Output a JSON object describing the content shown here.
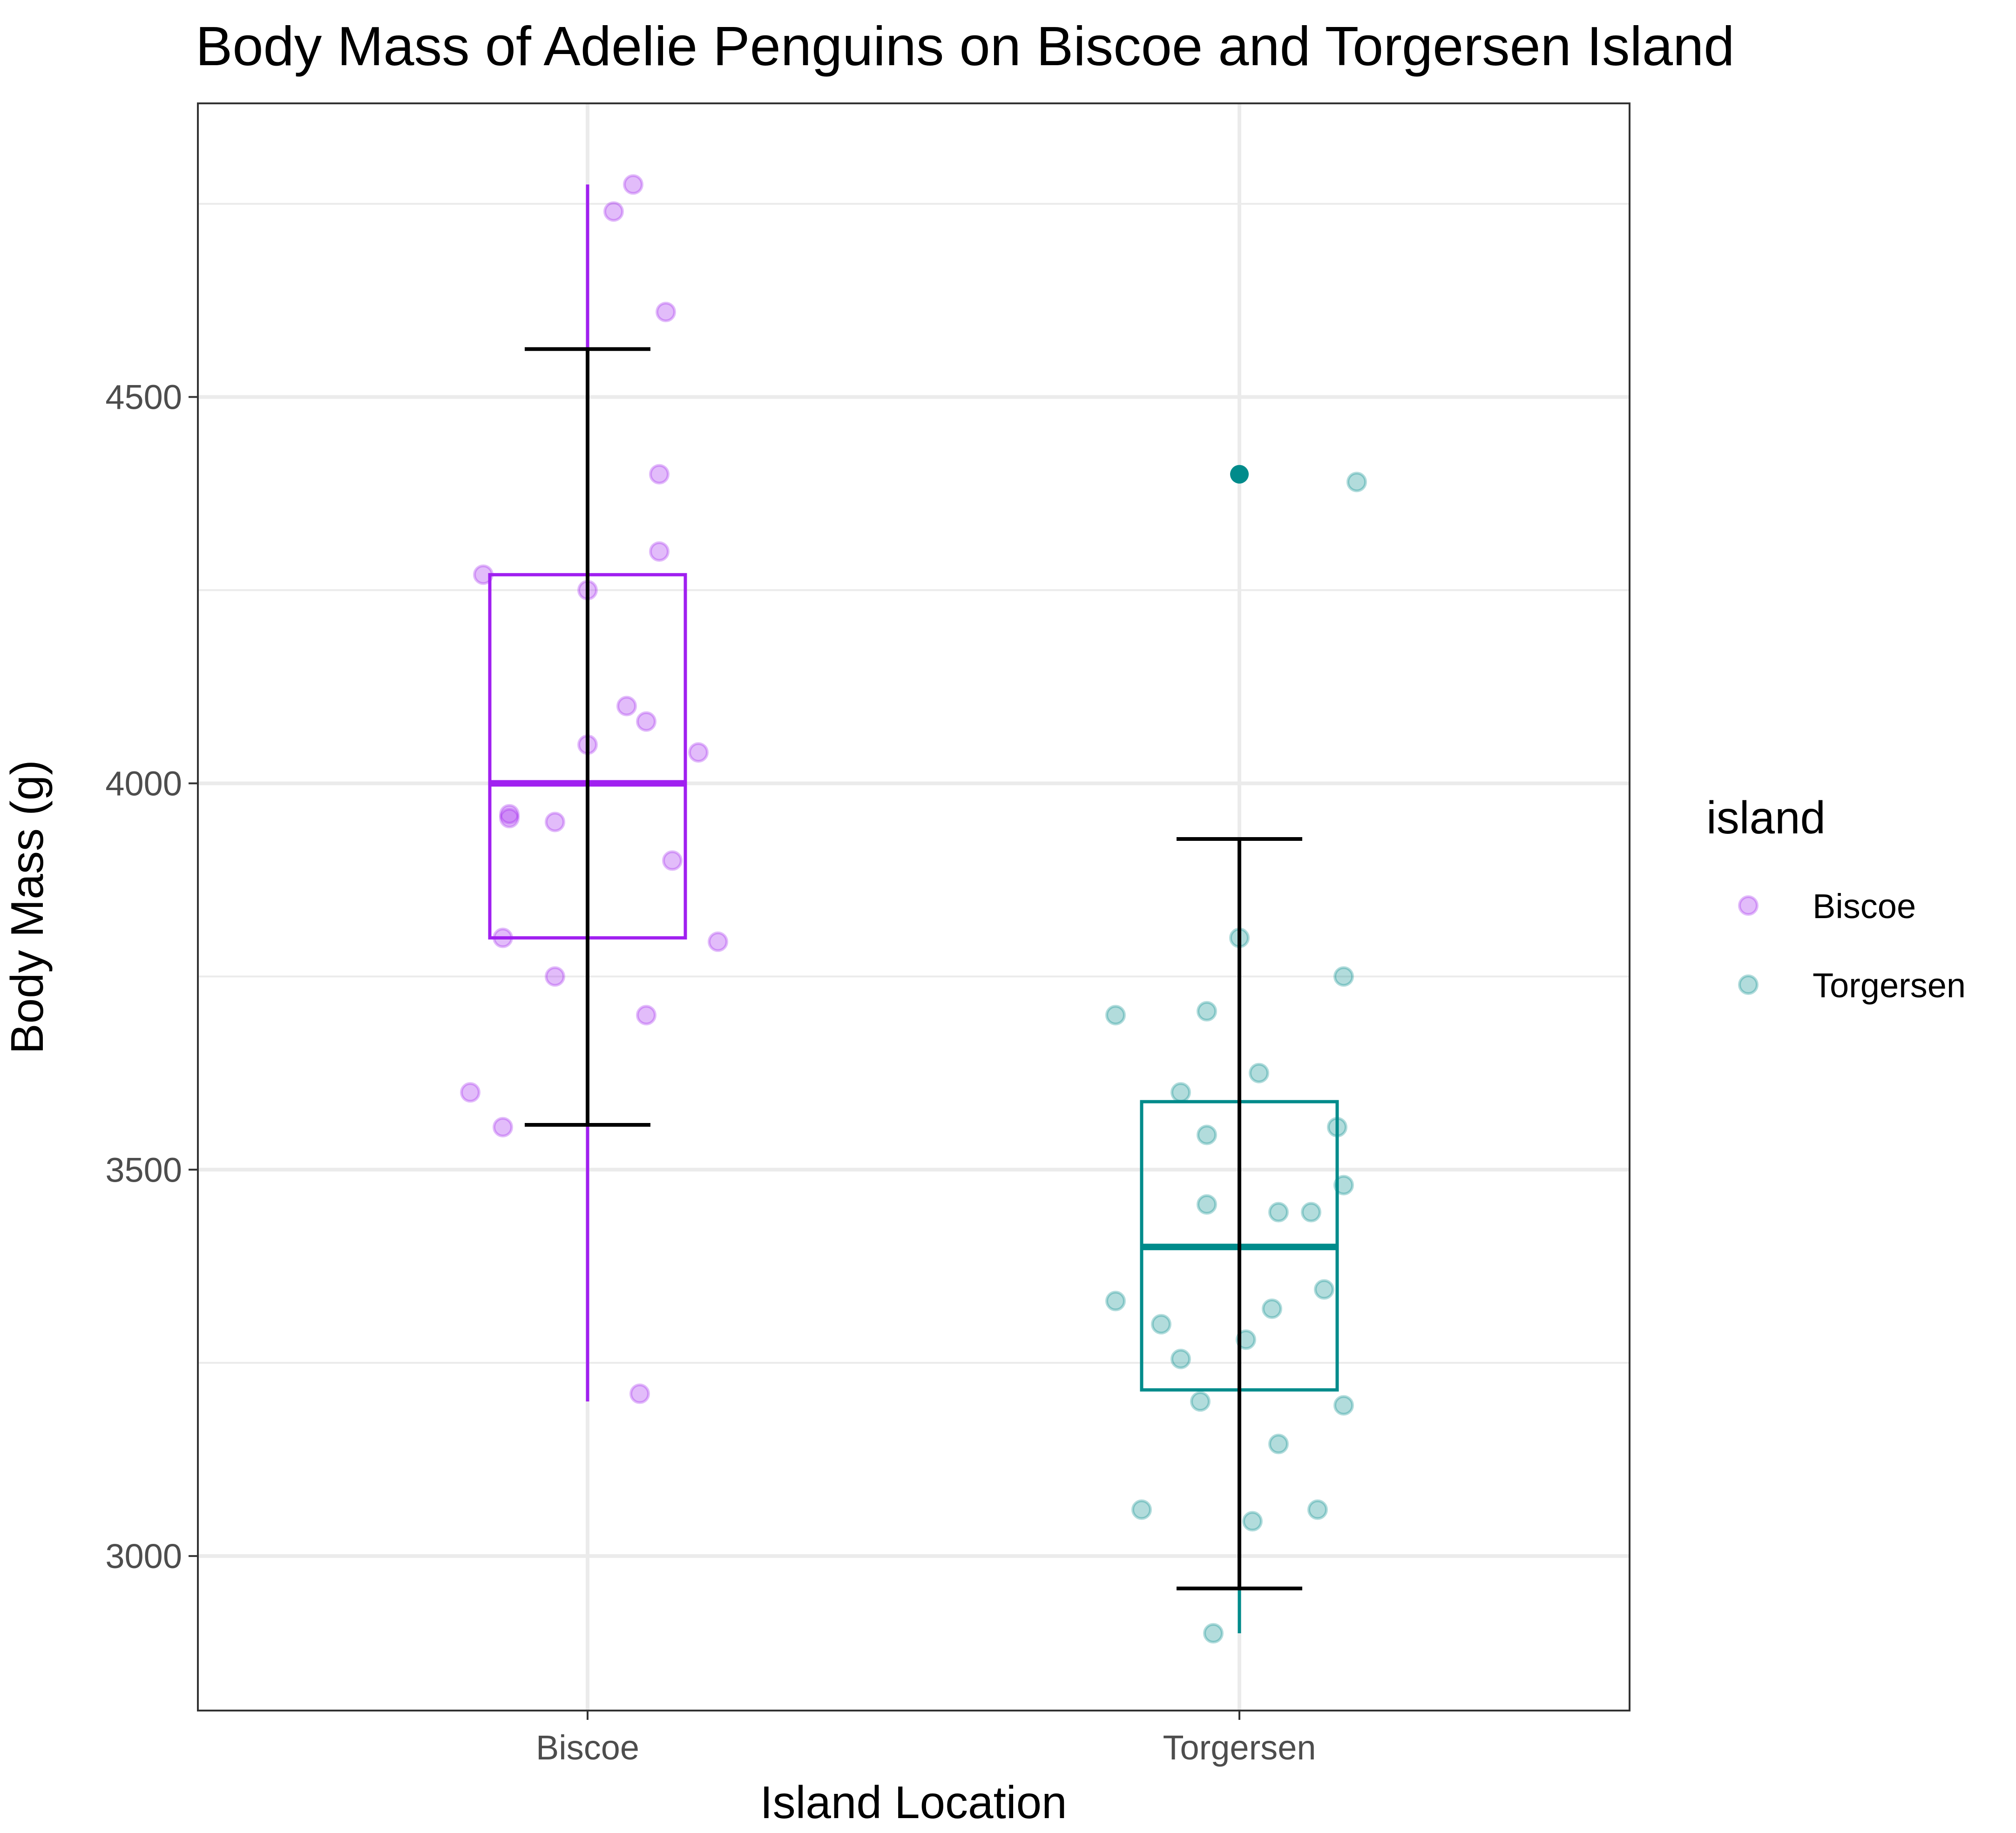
{
  "chart_data": {
    "type": "box",
    "title": "Body Mass of Adelie Penguins on Biscoe and Torgersen Island",
    "xlabel": "Island Location",
    "ylabel": "Body Mass (g)",
    "categories": [
      "Biscoe",
      "Torgersen"
    ],
    "ylim": [
      2800,
      4880
    ],
    "yticks": [
      3000,
      3500,
      4000,
      4500
    ],
    "y_tick_labels": [
      "3000",
      "3500",
      "4000",
      "4500"
    ],
    "grid": true,
    "legend": {
      "title": "island",
      "position": "right",
      "entries": [
        "Biscoe",
        "Torgersen"
      ]
    },
    "colors": {
      "Biscoe": "#a020f0",
      "Torgersen": "#008b8b",
      "errorbar": "#000000"
    },
    "boxes": [
      {
        "category": "Biscoe",
        "min": 3200,
        "q1": 3800,
        "median": 4000,
        "q3": 4270,
        "max": 4775,
        "outliers": []
      },
      {
        "category": "Torgersen",
        "min": 2900,
        "q1": 3215,
        "median": 3400,
        "q3": 3588,
        "max": 3800,
        "outliers": [
          4400
        ]
      }
    ],
    "error_bars": [
      {
        "category": "Biscoe",
        "low": 3558,
        "high": 4562
      },
      {
        "category": "Torgersen",
        "low": 2958,
        "high": 3928
      }
    ],
    "series": [
      {
        "name": "Biscoe",
        "points": [
          {
            "jitter": 0.07,
            "y": 4775
          },
          {
            "jitter": 0.04,
            "y": 4740
          },
          {
            "jitter": 0.12,
            "y": 4610
          },
          {
            "jitter": 0.11,
            "y": 4400
          },
          {
            "jitter": 0.11,
            "y": 4300
          },
          {
            "jitter": -0.16,
            "y": 4270
          },
          {
            "jitter": 0.0,
            "y": 4250
          },
          {
            "jitter": 0.06,
            "y": 4100
          },
          {
            "jitter": 0.09,
            "y": 4080
          },
          {
            "jitter": 0.0,
            "y": 4050
          },
          {
            "jitter": 0.17,
            "y": 4040
          },
          {
            "jitter": -0.12,
            "y": 3960
          },
          {
            "jitter": -0.12,
            "y": 3955
          },
          {
            "jitter": -0.05,
            "y": 3950
          },
          {
            "jitter": 0.13,
            "y": 3900
          },
          {
            "jitter": -0.13,
            "y": 3800
          },
          {
            "jitter": 0.2,
            "y": 3795
          },
          {
            "jitter": -0.05,
            "y": 3750
          },
          {
            "jitter": 0.09,
            "y": 3700
          },
          {
            "jitter": -0.18,
            "y": 3600
          },
          {
            "jitter": -0.13,
            "y": 3555
          },
          {
            "jitter": 0.08,
            "y": 3210
          }
        ]
      },
      {
        "name": "Torgersen",
        "points": [
          {
            "jitter": 0.18,
            "y": 4390
          },
          {
            "jitter": 0.0,
            "y": 3800
          },
          {
            "jitter": 0.16,
            "y": 3750
          },
          {
            "jitter": -0.05,
            "y": 3705
          },
          {
            "jitter": -0.19,
            "y": 3700
          },
          {
            "jitter": 0.03,
            "y": 3625
          },
          {
            "jitter": -0.09,
            "y": 3600
          },
          {
            "jitter": 0.15,
            "y": 3555
          },
          {
            "jitter": -0.05,
            "y": 3545
          },
          {
            "jitter": 0.16,
            "y": 3480
          },
          {
            "jitter": -0.05,
            "y": 3455
          },
          {
            "jitter": 0.06,
            "y": 3445
          },
          {
            "jitter": 0.11,
            "y": 3445
          },
          {
            "jitter": 0.13,
            "y": 3345
          },
          {
            "jitter": -0.19,
            "y": 3330
          },
          {
            "jitter": 0.05,
            "y": 3320
          },
          {
            "jitter": -0.12,
            "y": 3300
          },
          {
            "jitter": 0.01,
            "y": 3280
          },
          {
            "jitter": -0.09,
            "y": 3255
          },
          {
            "jitter": -0.06,
            "y": 3200
          },
          {
            "jitter": 0.16,
            "y": 3195
          },
          {
            "jitter": 0.06,
            "y": 3145
          },
          {
            "jitter": -0.15,
            "y": 3060
          },
          {
            "jitter": 0.12,
            "y": 3060
          },
          {
            "jitter": 0.02,
            "y": 3045
          },
          {
            "jitter": -0.04,
            "y": 2900
          }
        ]
      }
    ]
  }
}
